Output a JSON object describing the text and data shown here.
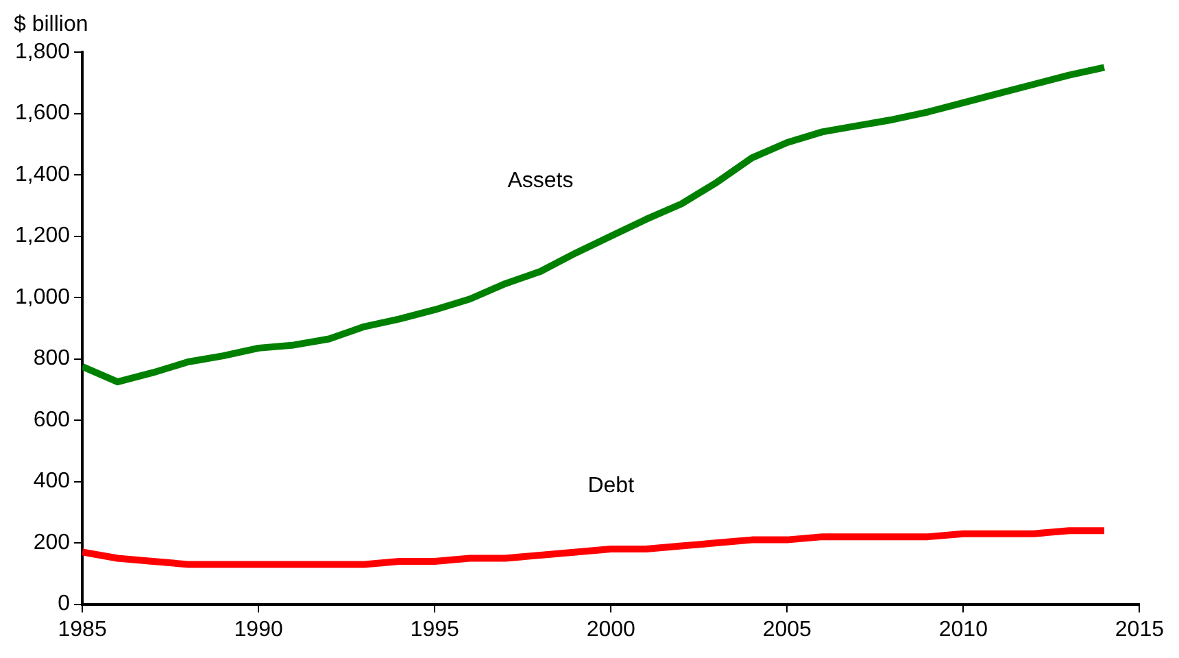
{
  "chart_data": {
    "type": "line",
    "ylabel": "$ billion",
    "x": [
      1985,
      1986,
      1987,
      1988,
      1989,
      1990,
      1991,
      1992,
      1993,
      1994,
      1995,
      1996,
      1997,
      1998,
      1999,
      2000,
      2001,
      2002,
      2003,
      2004,
      2005,
      2006,
      2007,
      2008,
      2009,
      2010,
      2011,
      2012,
      2013,
      2014
    ],
    "series": [
      {
        "name": "Assets",
        "color": "#008000",
        "values": [
          775,
          725,
          755,
          790,
          810,
          835,
          845,
          865,
          905,
          930,
          960,
          995,
          1045,
          1085,
          1145,
          1200,
          1255,
          1305,
          1375,
          1455,
          1505,
          1540,
          1560,
          1580,
          1605,
          1635,
          1665,
          1695,
          1725,
          1750
        ]
      },
      {
        "name": "Debt",
        "color": "#ff0000",
        "values": [
          170,
          150,
          140,
          130,
          130,
          130,
          130,
          130,
          130,
          140,
          140,
          150,
          150,
          160,
          170,
          180,
          180,
          190,
          200,
          210,
          210,
          220,
          220,
          220,
          220,
          230,
          230,
          230,
          240,
          240
        ]
      }
    ],
    "xlim": [
      1985,
      2015
    ],
    "xticks": [
      1985,
      1990,
      1995,
      2000,
      2005,
      2010,
      2015
    ],
    "ylim": [
      0,
      1800
    ],
    "yticks": [
      0,
      200,
      400,
      {
        "value": 600,
        "label": "600"
      },
      800,
      {
        "value": 1000,
        "label": "1,000"
      },
      {
        "value": 1200,
        "label": "1,200"
      },
      {
        "value": 1400,
        "label": "1,400"
      },
      {
        "value": 1600,
        "label": "1,600"
      },
      {
        "value": 1800,
        "label": "1,800"
      }
    ],
    "grid": false,
    "legend": false,
    "marker": "none",
    "line_style": "solid"
  }
}
